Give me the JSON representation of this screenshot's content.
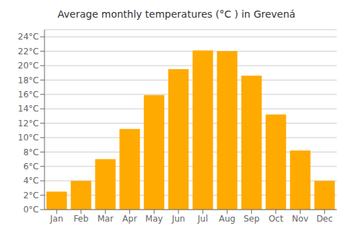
{
  "chart_data": {
    "type": "bar",
    "title": "Average monthly temperatures (°C ) in Grevená",
    "categories": [
      "Jan",
      "Feb",
      "Mar",
      "Apr",
      "May",
      "Jun",
      "Jul",
      "Aug",
      "Sep",
      "Oct",
      "Nov",
      "Dec"
    ],
    "values": [
      2.5,
      4.0,
      7.0,
      11.2,
      15.9,
      19.5,
      22.1,
      22.0,
      18.6,
      13.2,
      8.2,
      4.0
    ],
    "color": "#FFAA00",
    "ylim": [
      0,
      25
    ],
    "yticks": [
      {
        "value": 0,
        "label": "0°C"
      },
      {
        "value": 2,
        "label": "2°C"
      },
      {
        "value": 4,
        "label": "4°C"
      },
      {
        "value": 6,
        "label": "6°C"
      },
      {
        "value": 8,
        "label": "8°C"
      },
      {
        "value": 10,
        "label": "10°C"
      },
      {
        "value": 12,
        "label": "12°C"
      },
      {
        "value": 14,
        "label": "14°C"
      },
      {
        "value": 16,
        "label": "16°C"
      },
      {
        "value": 18,
        "label": "18°C"
      },
      {
        "value": 20,
        "label": "20°C"
      },
      {
        "value": 22,
        "label": "22°C"
      },
      {
        "value": 24,
        "label": "24°C"
      }
    ],
    "grid": true
  }
}
